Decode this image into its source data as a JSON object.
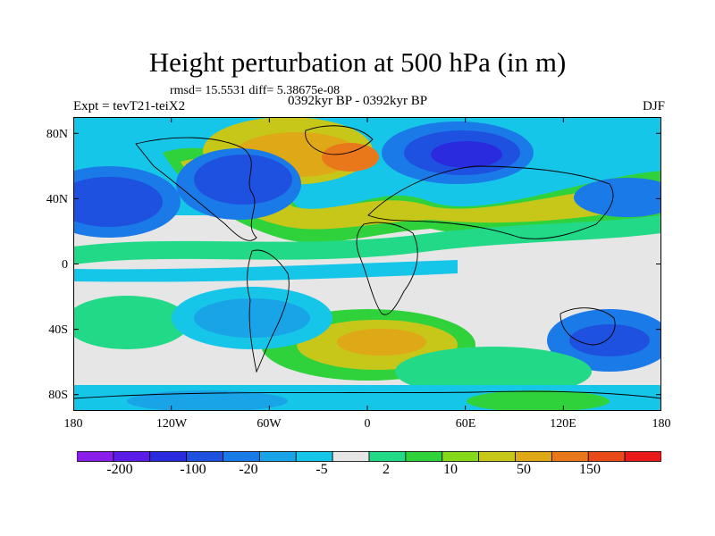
{
  "header": {
    "title": "Height perturbation at 500 hPa (in m)",
    "stats": "rmsd= 15.5531 diff= 5.38675e-08",
    "period": "0392kyr BP - 0392kyr BP",
    "experiment": "Expt = tevT21-teiX2",
    "season": "DJF"
  },
  "axes": {
    "lat_ticks": [
      "80N",
      "40N",
      "0",
      "40S",
      "80S"
    ],
    "lon_ticks": [
      "180",
      "120W",
      "60W",
      "0",
      "60E",
      "120E",
      "180"
    ]
  },
  "colorbar": {
    "colors": [
      "#8a1de8",
      "#5a1ce6",
      "#2a2adf",
      "#1f51e0",
      "#1a7ae8",
      "#1aa4e8",
      "#16c6e8",
      "#e6e6e6",
      "#21d986",
      "#30d23c",
      "#85d81a",
      "#c7c71a",
      "#dfa816",
      "#e8781a",
      "#e84a1a",
      "#e81a1a"
    ],
    "labels": [
      "-200",
      "-100",
      "-20",
      "-5",
      "2",
      "10",
      "50",
      "150"
    ]
  },
  "map": {
    "background": "#e6e6e6",
    "lon_range": [
      -180,
      180
    ],
    "lat_range": [
      -90,
      90
    ]
  }
}
